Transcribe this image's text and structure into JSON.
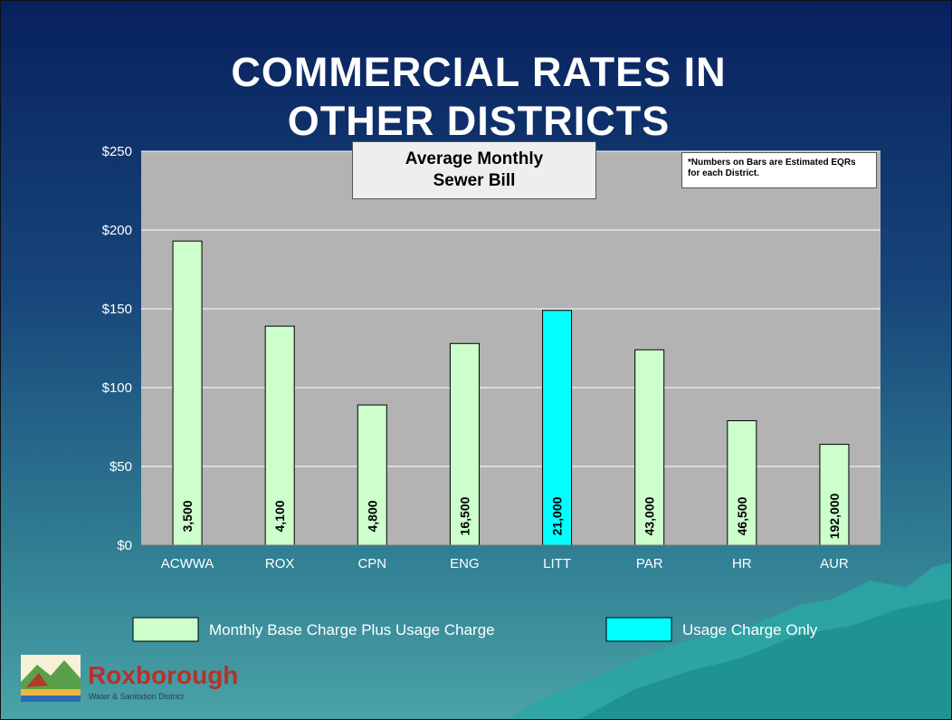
{
  "header": {
    "title": "COMMERCIAL RATES IN OTHER DISTRICTS"
  },
  "chart_data": {
    "type": "bar",
    "subtitle": "Average Monthly Sewer Bill",
    "annotation": "*Numbers on Bars are Estimated EQRs for each District.",
    "categories": [
      "ACWWA",
      "ROX",
      "CPN",
      "ENG",
      "LITT",
      "PAR",
      "HR",
      "AUR"
    ],
    "series": [
      {
        "name": "Monthly Base Charge Plus Usage Charge",
        "color": "#ccffcc",
        "values": [
          193,
          139,
          89,
          128,
          null,
          124,
          79,
          64
        ]
      },
      {
        "name": "Usage Charge Only",
        "color": "#00ffff",
        "values": [
          null,
          null,
          null,
          null,
          149,
          null,
          null,
          null
        ]
      }
    ],
    "bar_labels": [
      "3,500",
      "4,100",
      "4,800",
      "16,500",
      "21,000",
      "43,000",
      "46,500",
      "192,000"
    ],
    "ylim": [
      0,
      250
    ],
    "yticks": [
      {
        "value": 0,
        "label": "$0"
      },
      {
        "value": 50,
        "label": "$50"
      },
      {
        "value": 100,
        "label": "$100"
      },
      {
        "value": 150,
        "label": "$150"
      },
      {
        "value": 200,
        "label": "$200"
      },
      {
        "value": 250,
        "label": "$250"
      }
    ],
    "grid": true
  },
  "logo": {
    "name": "Roxborough",
    "tagline": "Water & Sanitation District"
  }
}
